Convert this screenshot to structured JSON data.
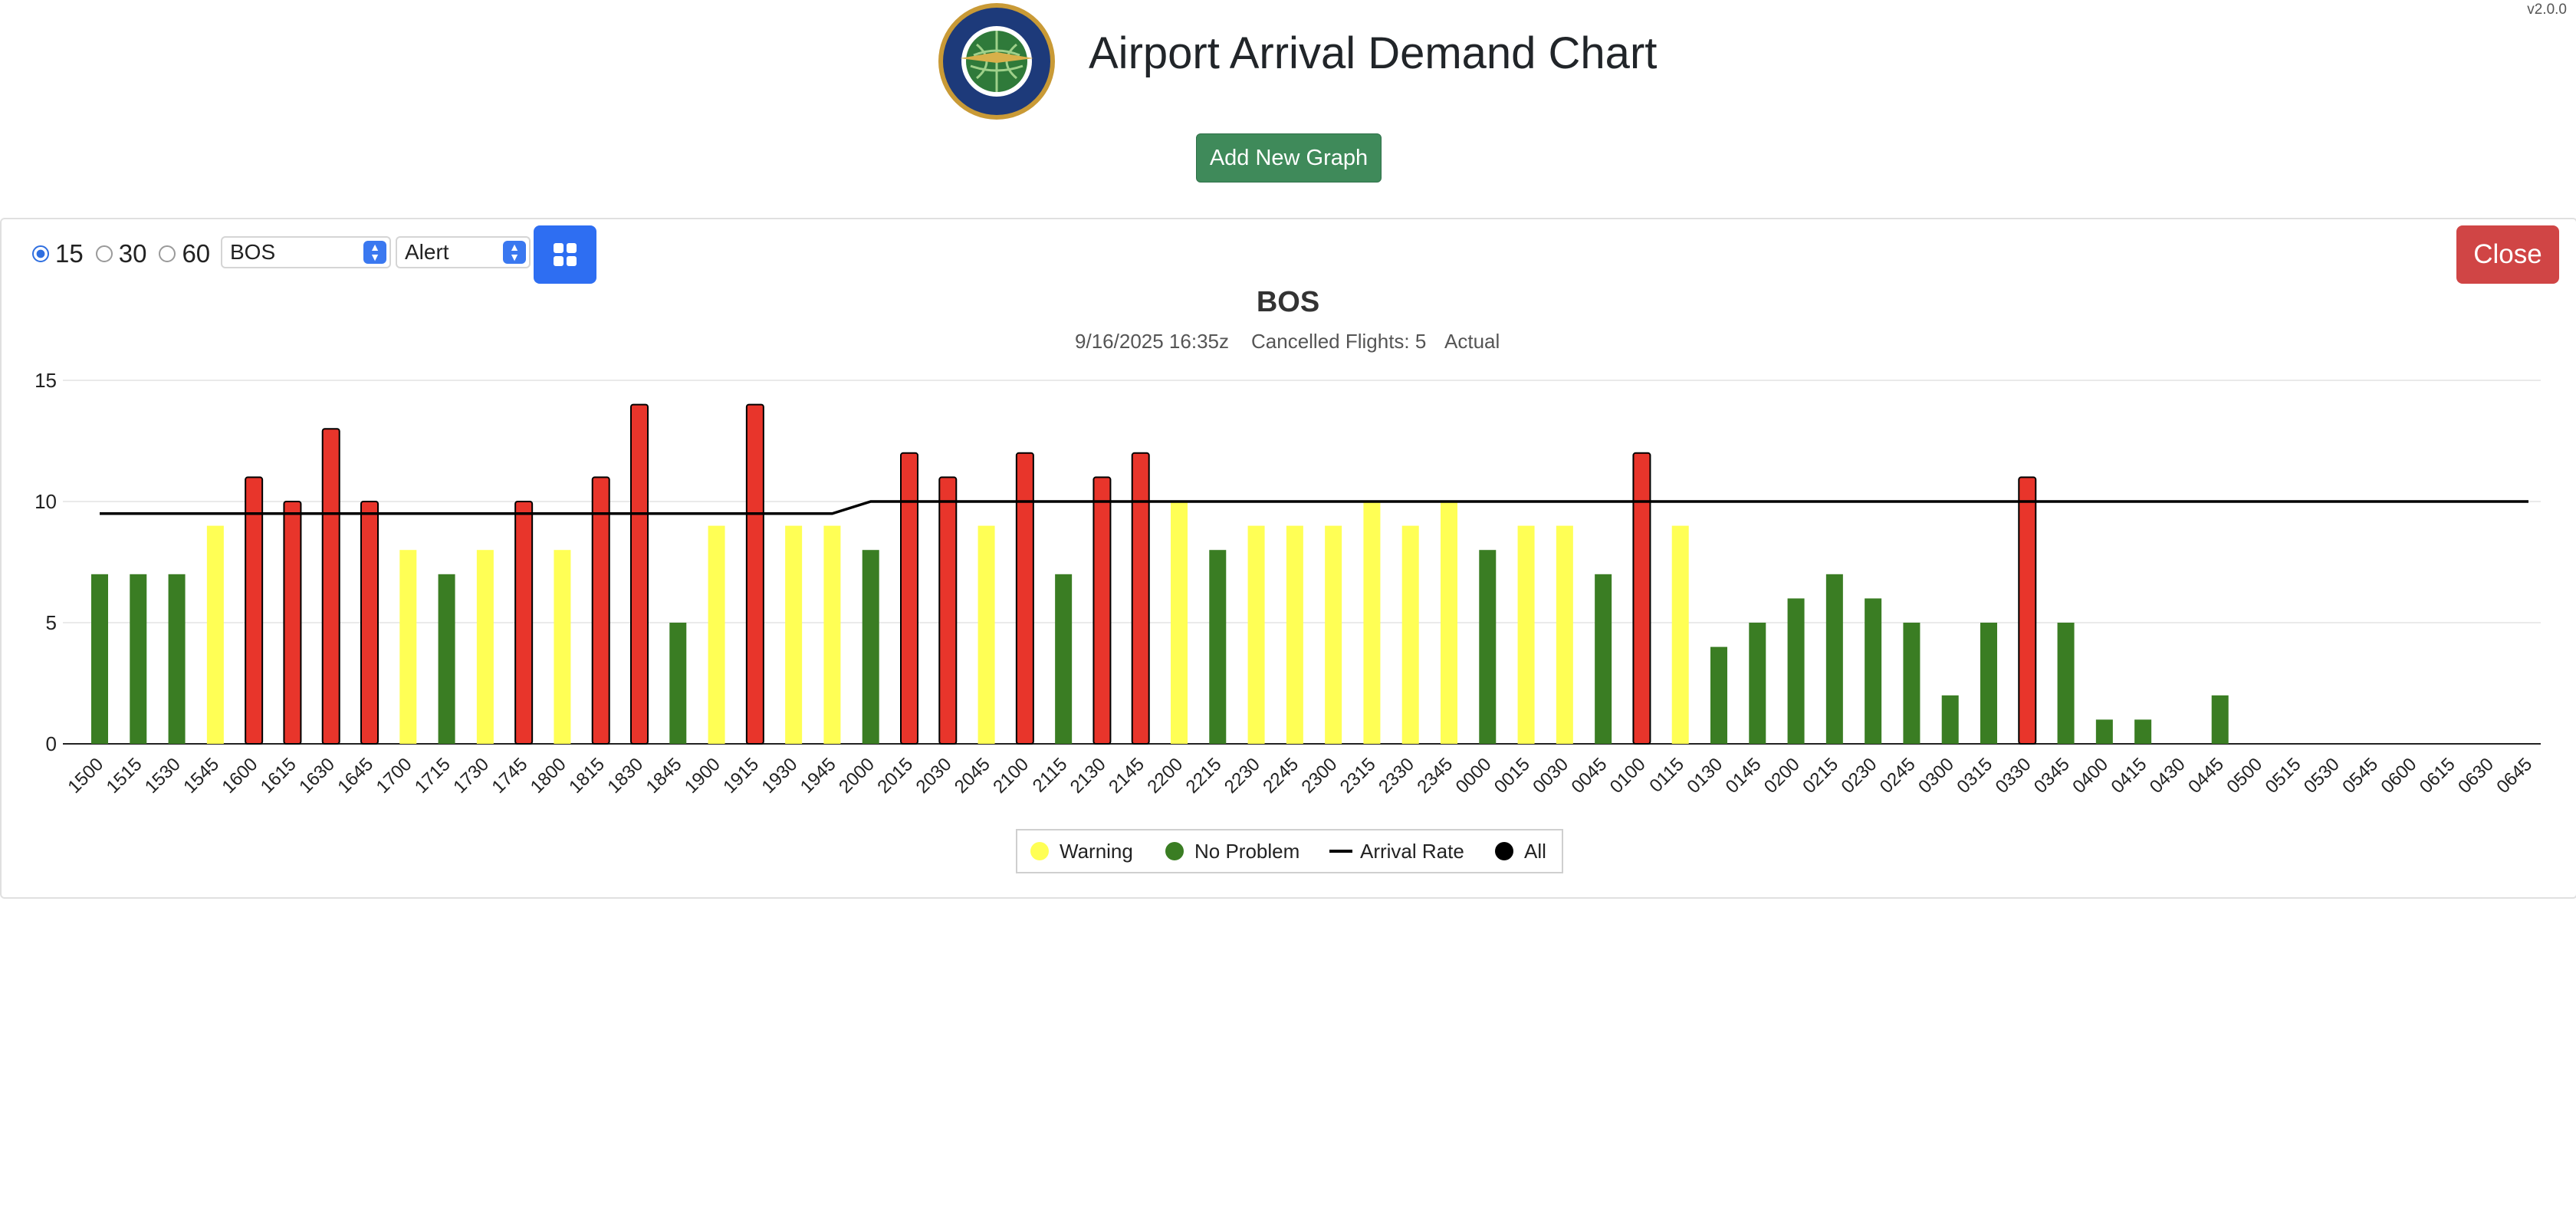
{
  "version": "v2.0.0",
  "header": {
    "title": "Airport Arrival Demand Chart",
    "add_button": "Add New Graph"
  },
  "controls": {
    "intervals": [
      {
        "label": "15",
        "selected": true
      },
      {
        "label": "30",
        "selected": false
      },
      {
        "label": "60",
        "selected": false
      }
    ],
    "airport": "BOS",
    "mode": "Alert",
    "close_label": "Close"
  },
  "colors": {
    "alert": "#e8352b",
    "warning": "#ffff55",
    "no_problem": "#3a7d23",
    "line": "#000000",
    "accent": "#2e6ef2",
    "close": "#d04545"
  },
  "chart_data": {
    "type": "bar",
    "title": "BOS",
    "subtitle": {
      "timestamp": "9/16/2025 16:35z",
      "cancelled": "Cancelled Flights: 5",
      "mode": "Actual"
    },
    "ylim": [
      0,
      15
    ],
    "yticks": [
      0,
      5,
      10,
      15
    ],
    "categories": [
      "1500",
      "1515",
      "1530",
      "1545",
      "1600",
      "1615",
      "1630",
      "1645",
      "1700",
      "1715",
      "1730",
      "1745",
      "1800",
      "1815",
      "1830",
      "1845",
      "1900",
      "1915",
      "1930",
      "1945",
      "2000",
      "2015",
      "2030",
      "2045",
      "2100",
      "2115",
      "2130",
      "2145",
      "2200",
      "2215",
      "2230",
      "2245",
      "2300",
      "2315",
      "2330",
      "2345",
      "0000",
      "0015",
      "0030",
      "0045",
      "0100",
      "0115",
      "0130",
      "0145",
      "0200",
      "0215",
      "0230",
      "0245",
      "0300",
      "0315",
      "0330",
      "0345",
      "0400",
      "0415",
      "0430",
      "0445",
      "0500",
      "0515",
      "0530",
      "0545",
      "0600",
      "0615",
      "0630",
      "0645"
    ],
    "values": [
      7,
      7,
      7,
      9,
      11,
      10,
      13,
      10,
      8,
      7,
      8,
      10,
      8,
      11,
      14,
      5,
      9,
      14,
      9,
      9,
      8,
      12,
      11,
      9,
      12,
      7,
      11,
      12,
      10,
      8,
      9,
      9,
      9,
      10,
      9,
      10,
      8,
      9,
      9,
      7,
      12,
      9,
      4,
      5,
      6,
      7,
      6,
      5,
      2,
      5,
      11,
      5,
      1,
      1,
      0,
      2,
      0,
      0,
      0,
      0,
      0,
      0,
      0,
      0
    ],
    "status": [
      "N",
      "N",
      "N",
      "W",
      "A",
      "A",
      "A",
      "A",
      "W",
      "N",
      "W",
      "A",
      "W",
      "A",
      "A",
      "N",
      "W",
      "A",
      "W",
      "W",
      "N",
      "A",
      "A",
      "W",
      "A",
      "N",
      "A",
      "A",
      "W",
      "N",
      "W",
      "W",
      "W",
      "W",
      "W",
      "W",
      "N",
      "W",
      "W",
      "N",
      "A",
      "W",
      "N",
      "N",
      "N",
      "N",
      "N",
      "N",
      "N",
      "N",
      "A",
      "N",
      "N",
      "N",
      "N",
      "N",
      "N",
      "N",
      "N",
      "N",
      "N",
      "N",
      "N",
      "N"
    ],
    "arrival_rate": [
      9.5,
      9.5,
      9.5,
      9.5,
      9.5,
      9.5,
      9.5,
      9.5,
      9.5,
      9.5,
      9.5,
      9.5,
      9.5,
      9.5,
      9.5,
      9.5,
      9.5,
      9.5,
      9.5,
      9.5,
      10,
      10,
      10,
      10,
      10,
      10,
      10,
      10,
      10,
      10,
      10,
      10,
      10,
      10,
      10,
      10,
      10,
      10,
      10,
      10,
      10,
      10,
      10,
      10,
      10,
      10,
      10,
      10,
      10,
      10,
      10,
      10,
      10,
      10,
      10,
      10,
      10,
      10,
      10,
      10,
      10,
      10,
      10,
      10
    ],
    "legend": [
      {
        "label": "Warning",
        "kind": "dot",
        "color": "#ffff55"
      },
      {
        "label": "No Problem",
        "kind": "dot",
        "color": "#3a7d23"
      },
      {
        "label": "Arrival Rate",
        "kind": "line",
        "color": "#000000"
      },
      {
        "label": "All",
        "kind": "dot",
        "color": "#000000"
      }
    ],
    "grid": true,
    "legend_position": "bottom-center"
  }
}
